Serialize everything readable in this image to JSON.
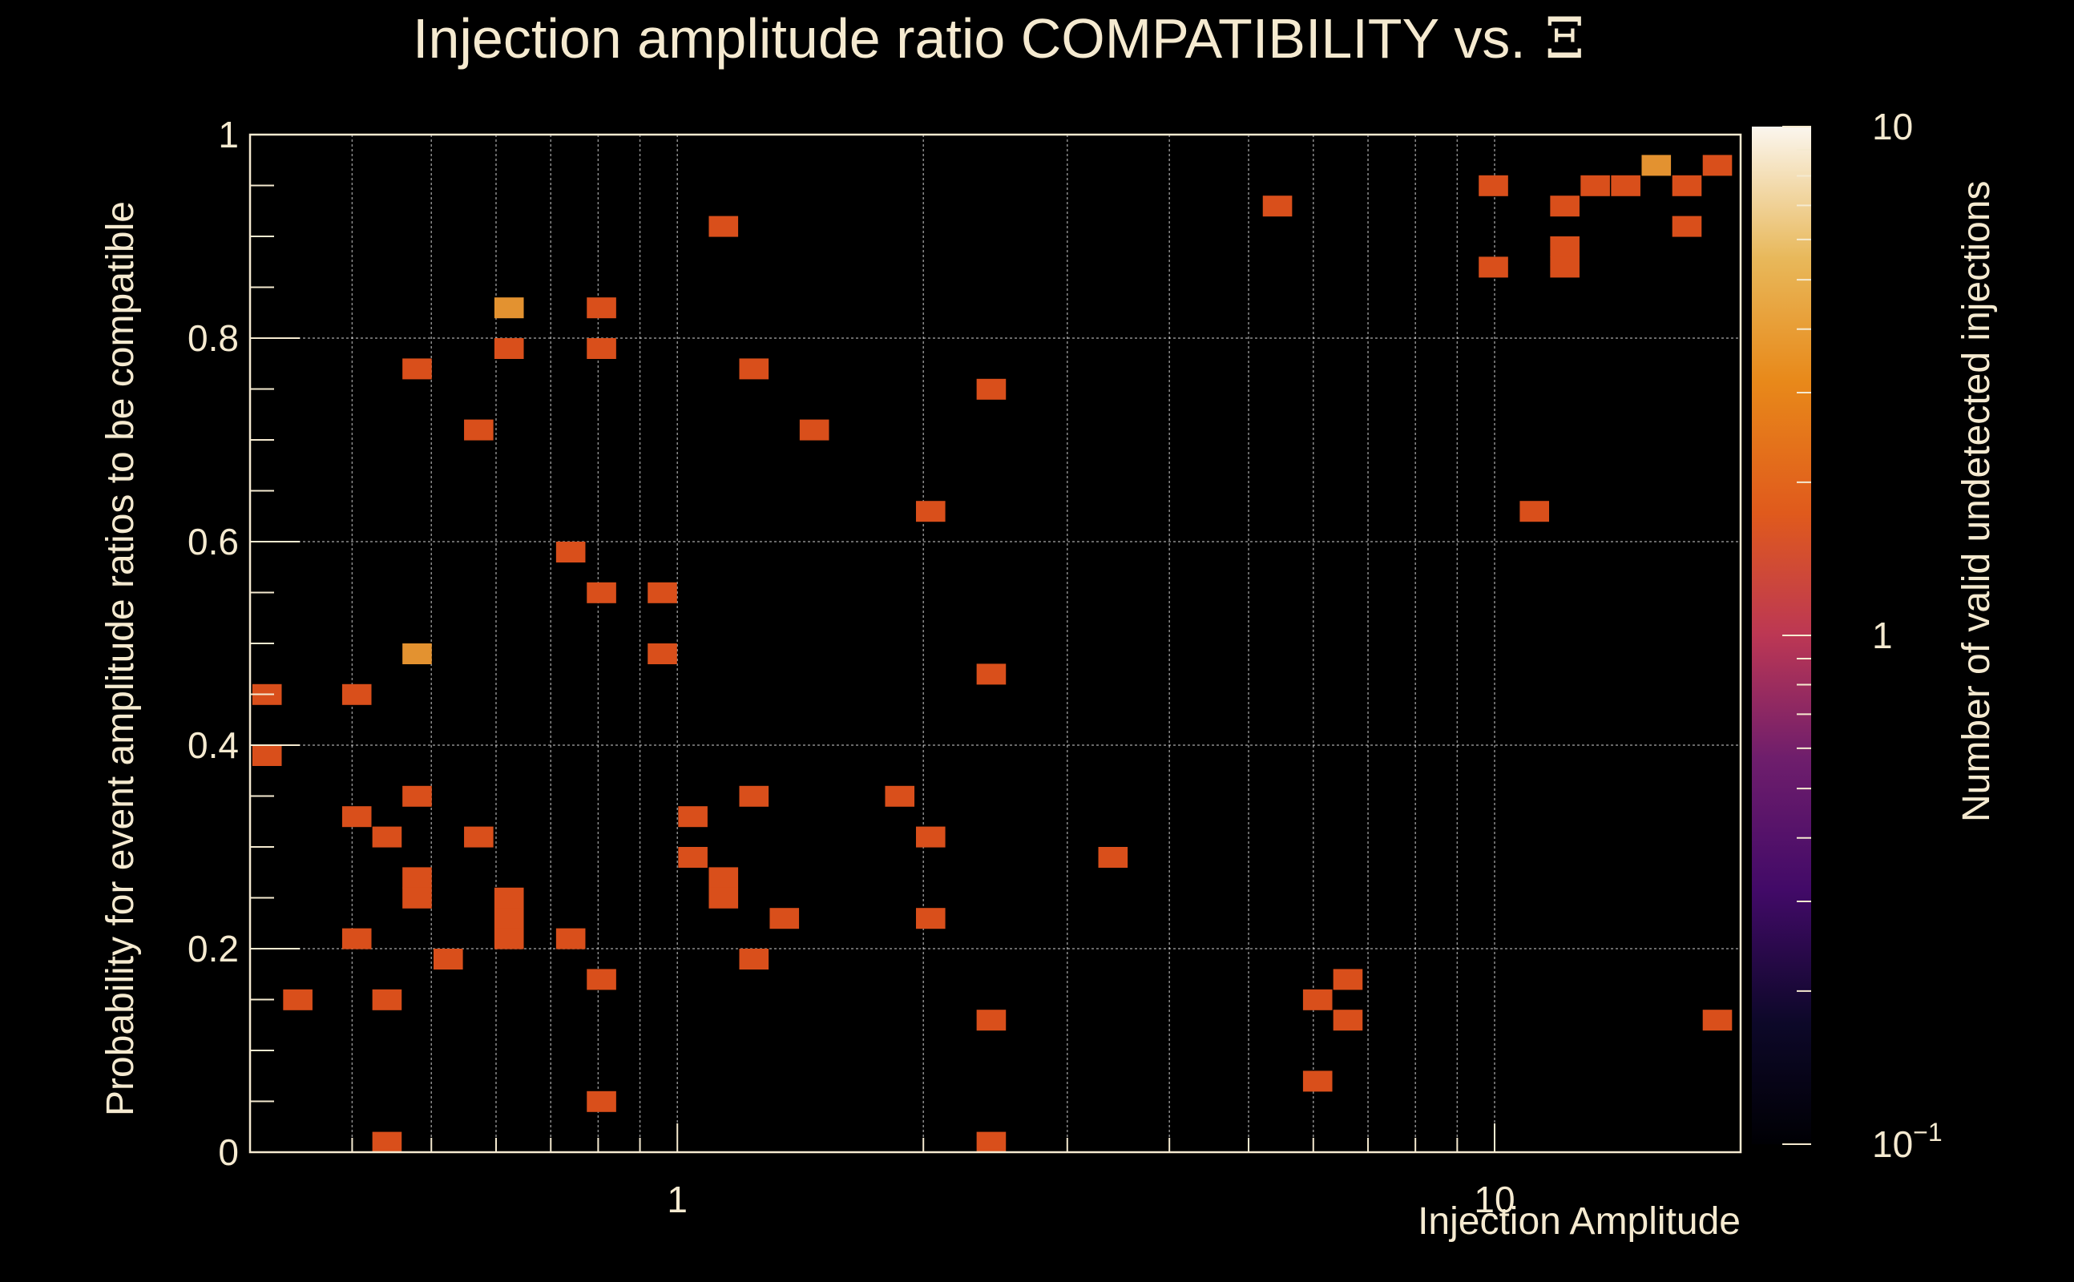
{
  "chart_data": {
    "type": "heatmap",
    "title": "Injection amplitude ratio COMPATIBILITY vs.",
    "title_symbol": "Ξ",
    "xlabel": "Injection Amplitude",
    "ylabel": "Probability for event amplitude ratios to be compatible",
    "zlabel": "Number of valid undetected injections",
    "xscale": "log",
    "xlim": [
      0.3,
      20
    ],
    "ylim": [
      0,
      1
    ],
    "zscale": "log",
    "zlim": [
      0.1,
      10
    ],
    "xticks": [
      {
        "value": 1,
        "label": "1"
      },
      {
        "value": 10,
        "label": "10"
      }
    ],
    "yticks": [
      {
        "value": 0,
        "label": "0"
      },
      {
        "value": 0.2,
        "label": "0.2"
      },
      {
        "value": 0.4,
        "label": "0.4"
      },
      {
        "value": 0.6,
        "label": "0.6"
      },
      {
        "value": 0.8,
        "label": "0.8"
      },
      {
        "value": 1,
        "label": "1"
      }
    ],
    "zticks": [
      {
        "value": 10,
        "label": "10"
      },
      {
        "value": 1,
        "label": "1"
      },
      {
        "value": 0.1,
        "label": "10",
        "sup": "−1"
      }
    ],
    "bin_width_logx": 0.0353,
    "bin_height_y": 0.02,
    "cells": [
      {
        "x": 0.3145,
        "y": 0.45,
        "v": 1
      },
      {
        "x": 0.3145,
        "y": 0.39,
        "v": 1
      },
      {
        "x": 0.343,
        "y": 0.15,
        "v": 1
      },
      {
        "x": 0.405,
        "y": 0.45,
        "v": 1
      },
      {
        "x": 0.405,
        "y": 0.33,
        "v": 1
      },
      {
        "x": 0.405,
        "y": 0.21,
        "v": 1
      },
      {
        "x": 0.441,
        "y": 0.31,
        "v": 1
      },
      {
        "x": 0.441,
        "y": 0.15,
        "v": 1
      },
      {
        "x": 0.441,
        "y": 0.01,
        "v": 1
      },
      {
        "x": 0.48,
        "y": 0.77,
        "v": 1
      },
      {
        "x": 0.48,
        "y": 0.49,
        "v": 2
      },
      {
        "x": 0.48,
        "y": 0.35,
        "v": 1
      },
      {
        "x": 0.48,
        "y": 0.27,
        "v": 1
      },
      {
        "x": 0.48,
        "y": 0.25,
        "v": 1
      },
      {
        "x": 0.524,
        "y": 0.19,
        "v": 1
      },
      {
        "x": 0.571,
        "y": 0.71,
        "v": 1
      },
      {
        "x": 0.571,
        "y": 0.31,
        "v": 1
      },
      {
        "x": 0.622,
        "y": 0.83,
        "v": 2
      },
      {
        "x": 0.622,
        "y": 0.79,
        "v": 1
      },
      {
        "x": 0.622,
        "y": 0.25,
        "v": 1
      },
      {
        "x": 0.622,
        "y": 0.23,
        "v": 1
      },
      {
        "x": 0.622,
        "y": 0.21,
        "v": 1
      },
      {
        "x": 0.74,
        "y": 0.59,
        "v": 1
      },
      {
        "x": 0.74,
        "y": 0.21,
        "v": 1
      },
      {
        "x": 0.807,
        "y": 0.83,
        "v": 1
      },
      {
        "x": 0.807,
        "y": 0.79,
        "v": 1
      },
      {
        "x": 0.807,
        "y": 0.55,
        "v": 1
      },
      {
        "x": 0.807,
        "y": 0.17,
        "v": 1
      },
      {
        "x": 0.807,
        "y": 0.05,
        "v": 1
      },
      {
        "x": 0.958,
        "y": 0.55,
        "v": 1
      },
      {
        "x": 0.958,
        "y": 0.49,
        "v": 1
      },
      {
        "x": 1.044,
        "y": 0.33,
        "v": 1
      },
      {
        "x": 1.044,
        "y": 0.29,
        "v": 1
      },
      {
        "x": 1.138,
        "y": 0.91,
        "v": 1
      },
      {
        "x": 1.138,
        "y": 0.27,
        "v": 1
      },
      {
        "x": 1.138,
        "y": 0.25,
        "v": 1
      },
      {
        "x": 1.24,
        "y": 0.77,
        "v": 1
      },
      {
        "x": 1.24,
        "y": 0.35,
        "v": 1
      },
      {
        "x": 1.24,
        "y": 0.19,
        "v": 1
      },
      {
        "x": 1.351,
        "y": 0.23,
        "v": 1
      },
      {
        "x": 1.47,
        "y": 0.71,
        "v": 1
      },
      {
        "x": 1.87,
        "y": 0.35,
        "v": 1
      },
      {
        "x": 2.04,
        "y": 0.63,
        "v": 1
      },
      {
        "x": 2.04,
        "y": 0.31,
        "v": 1
      },
      {
        "x": 2.04,
        "y": 0.23,
        "v": 1
      },
      {
        "x": 2.42,
        "y": 0.75,
        "v": 1
      },
      {
        "x": 2.42,
        "y": 0.47,
        "v": 1
      },
      {
        "x": 2.42,
        "y": 0.13,
        "v": 1
      },
      {
        "x": 2.42,
        "y": 0.01,
        "v": 1
      },
      {
        "x": 3.41,
        "y": 0.29,
        "v": 1
      },
      {
        "x": 5.42,
        "y": 0.93,
        "v": 1
      },
      {
        "x": 6.07,
        "y": 0.15,
        "v": 1
      },
      {
        "x": 6.07,
        "y": 0.07,
        "v": 1
      },
      {
        "x": 6.61,
        "y": 0.17,
        "v": 1
      },
      {
        "x": 6.61,
        "y": 0.13,
        "v": 1
      },
      {
        "x": 9.96,
        "y": 0.95,
        "v": 1
      },
      {
        "x": 9.96,
        "y": 0.87,
        "v": 1
      },
      {
        "x": 11.18,
        "y": 0.63,
        "v": 1
      },
      {
        "x": 12.18,
        "y": 0.93,
        "v": 1
      },
      {
        "x": 12.18,
        "y": 0.89,
        "v": 1
      },
      {
        "x": 12.18,
        "y": 0.87,
        "v": 1
      },
      {
        "x": 13.27,
        "y": 0.95,
        "v": 1
      },
      {
        "x": 14.46,
        "y": 0.95,
        "v": 1
      },
      {
        "x": 15.76,
        "y": 0.97,
        "v": 2
      },
      {
        "x": 17.18,
        "y": 0.95,
        "v": 1
      },
      {
        "x": 17.18,
        "y": 0.91,
        "v": 1
      },
      {
        "x": 18.72,
        "y": 0.97,
        "v": 1
      },
      {
        "x": 18.72,
        "y": 0.13,
        "v": 1
      }
    ]
  }
}
